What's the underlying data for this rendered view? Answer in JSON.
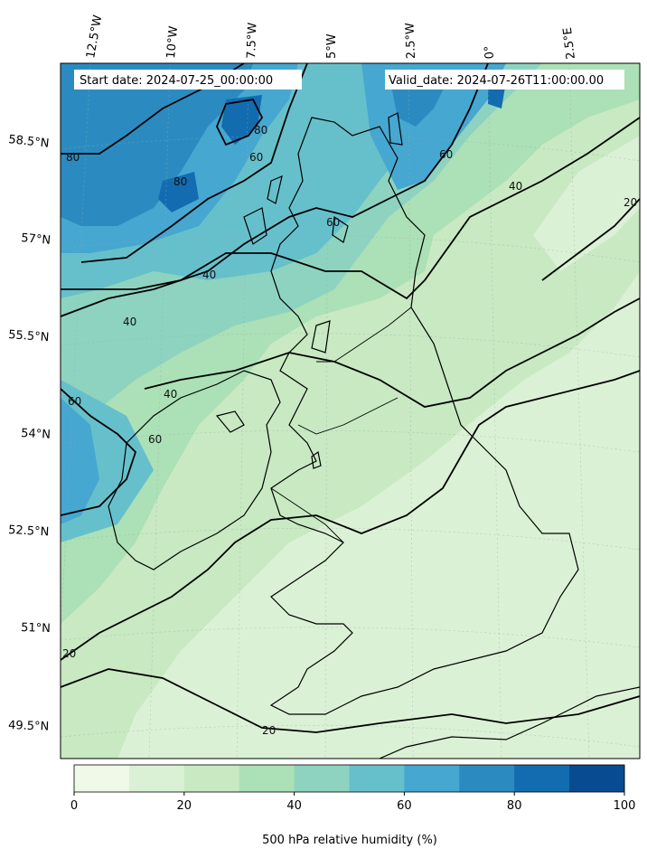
{
  "header": {
    "start_text": "Start date: 2024-07-25_00:00:00",
    "valid_text": "Valid_date: 2024-07-26T11:00:00.00"
  },
  "axes": {
    "lon_labels": [
      "12.5°W",
      "10°W",
      "7.5°W",
      "5°W",
      "2.5°W",
      "0°",
      "2.5°E"
    ],
    "lat_labels": [
      "58.5°N",
      "57°N",
      "55.5°N",
      "54°N",
      "52.5°N",
      "51°N",
      "49.5°N"
    ]
  },
  "contour_labels": [
    "80",
    "80",
    "80",
    "60",
    "60",
    "60",
    "60",
    "40",
    "40",
    "40",
    "40",
    "20",
    "20",
    "20",
    "60"
  ],
  "colorbar": {
    "title": "500 hPa relative humidity (%)",
    "ticks": [
      "0",
      "20",
      "40",
      "60",
      "80",
      "100"
    ],
    "colors": [
      "#f0f9e8",
      "#dbf1d5",
      "#c8e9c2",
      "#ace0b6",
      "#8dd3c0",
      "#66c0cb",
      "#46a7d0",
      "#2b8bc1",
      "#136cb0",
      "#084b91"
    ]
  }
}
